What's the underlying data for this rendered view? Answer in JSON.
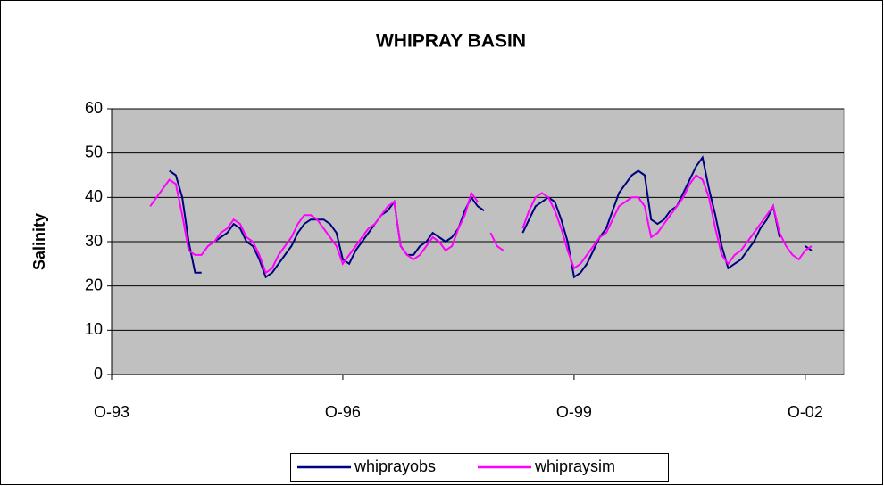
{
  "chart_data": {
    "type": "line",
    "title": "WHIPRAY BASIN",
    "ylabel": "Salinity",
    "x": [
      "1994-04",
      "1994-05",
      "1994-06",
      "1994-07",
      "1994-08",
      "1994-09",
      "1994-10",
      "1994-11",
      "1994-12",
      "1995-01",
      "1995-02",
      "1995-03",
      "1995-04",
      "1995-05",
      "1995-06",
      "1995-07",
      "1995-08",
      "1995-09",
      "1995-10",
      "1995-11",
      "1995-12",
      "1996-01",
      "1996-02",
      "1996-03",
      "1996-04",
      "1996-05",
      "1996-06",
      "1996-07",
      "1996-08",
      "1996-09",
      "1996-10",
      "1996-11",
      "1996-12",
      "1997-01",
      "1997-02",
      "1997-03",
      "1997-04",
      "1997-05",
      "1997-06",
      "1997-07",
      "1997-08",
      "1997-09",
      "1997-10",
      "1997-11",
      "1997-12",
      "1998-01",
      "1998-02",
      "1998-03",
      "1998-04",
      "1998-05",
      "1998-06",
      "1998-07",
      "1998-08",
      "1998-09",
      "1998-10",
      "1998-11",
      "1998-12",
      "1999-01",
      "1999-02",
      "1999-03",
      "1999-04",
      "1999-05",
      "1999-06",
      "1999-07",
      "1999-08",
      "1999-09",
      "1999-10",
      "1999-11",
      "1999-12",
      "2000-01",
      "2000-02",
      "2000-03",
      "2000-04",
      "2000-05",
      "2000-06",
      "2000-07",
      "2000-08",
      "2000-09",
      "2000-10",
      "2000-11",
      "2000-12",
      "2001-01",
      "2001-02",
      "2001-03",
      "2001-04",
      "2001-05",
      "2001-06",
      "2001-07",
      "2001-08",
      "2001-09",
      "2001-10",
      "2001-11",
      "2001-12",
      "2002-01",
      "2002-02",
      "2002-03",
      "2002-04",
      "2002-05",
      "2002-06",
      "2002-07",
      "2002-08",
      "2002-09",
      "2002-10",
      "2002-11"
    ],
    "series": [
      {
        "name": "whiprayobs",
        "color": "#000080",
        "values": [
          null,
          null,
          null,
          46,
          45,
          40,
          30,
          23,
          23,
          null,
          30,
          31,
          32,
          34,
          33,
          30,
          29,
          26,
          22,
          23,
          25,
          27,
          29,
          32,
          34,
          35,
          35,
          35,
          34,
          32,
          26,
          25,
          28,
          30,
          32,
          34,
          36,
          37,
          39,
          29,
          27,
          27,
          29,
          30,
          32,
          31,
          30,
          31,
          33,
          37,
          40,
          38,
          37,
          null,
          null,
          null,
          null,
          null,
          32,
          35,
          38,
          39,
          40,
          39,
          35,
          30,
          22,
          23,
          25,
          28,
          31,
          33,
          37,
          41,
          43,
          45,
          46,
          45,
          35,
          34,
          35,
          37,
          38,
          41,
          44,
          47,
          49,
          42,
          36,
          29,
          24,
          25,
          26,
          28,
          30,
          33,
          35,
          38,
          31,
          null,
          null,
          null,
          29,
          28
        ]
      },
      {
        "name": "whipraysim",
        "color": "#ff00ff",
        "values": [
          38,
          40,
          42,
          44,
          43,
          36,
          28,
          27,
          27,
          29,
          30,
          32,
          33,
          35,
          34,
          31,
          30,
          27,
          23,
          24,
          27,
          29,
          31,
          34,
          36,
          36,
          35,
          33,
          31,
          29,
          25,
          27,
          29,
          31,
          33,
          34,
          36,
          38,
          39,
          29,
          27,
          26,
          27,
          29,
          31,
          30,
          28,
          29,
          33,
          36,
          41,
          39,
          null,
          32,
          29,
          28,
          null,
          null,
          33,
          37,
          40,
          41,
          40,
          37,
          33,
          28,
          24,
          25,
          27,
          29,
          31,
          32,
          35,
          38,
          39,
          40,
          40,
          38,
          31,
          32,
          34,
          36,
          38,
          40,
          43,
          45,
          44,
          40,
          33,
          27,
          25,
          27,
          28,
          30,
          32,
          34,
          36,
          38,
          32,
          29,
          27,
          26,
          28,
          29
        ]
      }
    ],
    "xlim": [
      "1993-10",
      "2003-04"
    ],
    "xticks": [
      {
        "value": "1993-10",
        "label": "O-93"
      },
      {
        "value": "1996-10",
        "label": "O-96"
      },
      {
        "value": "1999-10",
        "label": "O-99"
      },
      {
        "value": "2002-10",
        "label": "O-02"
      }
    ],
    "ylim": [
      0,
      60
    ],
    "yticks": [
      0,
      10,
      20,
      30,
      40,
      50,
      60
    ],
    "grid": true,
    "legend": "bottom"
  }
}
